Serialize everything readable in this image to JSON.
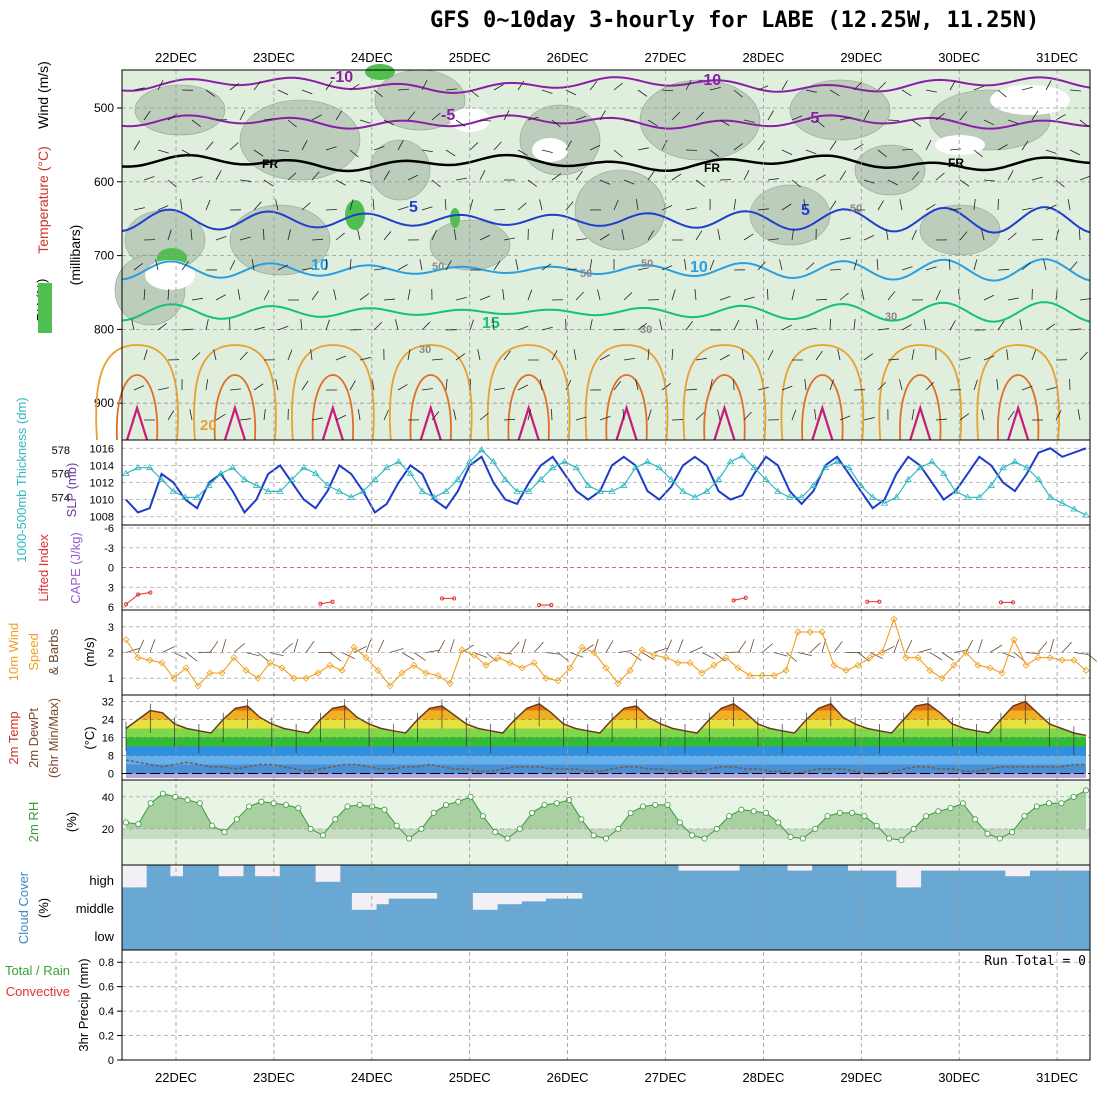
{
  "title": "GFS 0~10day 3-hourly for LABE (12.25W, 11.25N)",
  "dates": [
    "22DEC",
    "23DEC",
    "24DEC",
    "25DEC",
    "26DEC",
    "27DEC",
    "28DEC",
    "29DEC",
    "30DEC",
    "31DEC"
  ],
  "colors": {
    "rh_light": "#dfeedd",
    "rh_mid": "#b9cab9",
    "rh_dark": "#a2b4a2",
    "rh_green": "#4fc04f",
    "temp_m10": "#8a1fa5",
    "temp_m5": "#8a1fa5",
    "temp_fr": "#000000",
    "temp_5": "#1f3fcc",
    "temp_10": "#2a9fe0",
    "temp_15": "#15c07a",
    "temp_20": "#e8a030",
    "temp_25": "#e07020",
    "temp_30": "#cc1a7a",
    "slp": "#1e3cc8",
    "thickness": "#30b8c0",
    "lifted": "#e03030",
    "wind10": "#f0a020",
    "temp2m_hot": "#d84010",
    "dew": "#7a5a3a",
    "rh2m": "#3a9a3a",
    "cloud": "#6aa8d4",
    "cloud_white": "#f2f0f6"
  },
  "panels": {
    "upper": {
      "ylabel": "(millibars)",
      "side_labels": [
        "RH (%)",
        "Temperature (°C)",
        "Wind (m/s)"
      ],
      "ticks": [
        "500",
        "600",
        "700",
        "800",
        "900"
      ],
      "contour_labels": [
        "-10",
        "-5",
        "FR",
        "5",
        "10",
        "15",
        "20",
        "30",
        "50"
      ]
    },
    "slp": {
      "left_label": "1000-500mb Thickness (dm)",
      "right_label": "SLP (mb)",
      "left_ticks": [
        "578",
        "576",
        "574"
      ],
      "right_ticks": [
        "1016",
        "1014",
        "1012",
        "1010",
        "1008"
      ]
    },
    "li": {
      "left_label": "Lifted Index",
      "right_label": "CAPE (J/kg)",
      "ticks": [
        "-6",
        "-3",
        "0",
        "3",
        "6"
      ]
    },
    "wind10": {
      "label_a": "10m Wind",
      "label_b": "Speed",
      "label_c": "& Barbs",
      "ylabel": "(m/s)",
      "ticks": [
        "3",
        "2",
        "1"
      ]
    },
    "temp2m": {
      "label_a": "2m Temp",
      "label_b": "2m DewPt",
      "label_c": "(6hr Min/Max)",
      "ylabel": "(°C)",
      "ticks": [
        "32",
        "24",
        "16",
        "8",
        "0"
      ]
    },
    "rh2m": {
      "label": "2m RH",
      "ylabel": "(%)",
      "ticks": [
        "40",
        "20"
      ]
    },
    "cloud": {
      "label": "Cloud Cover",
      "ylabel": "(%)",
      "levels": [
        "high",
        "middle",
        "low"
      ]
    },
    "precip": {
      "label_a": "Total / Rain",
      "label_b": "Convective",
      "ylabel": "3hr Precip (mm)",
      "ticks": [
        "0.8",
        "0.6",
        "0.4",
        "0.2",
        "0"
      ],
      "run_total": "Run Total = 0"
    }
  },
  "chart_data": [
    {
      "type": "line",
      "title": "1000-500mb Thickness (dm) / SLP (mb)",
      "series": [
        {
          "name": "SLP (mb)",
          "values": [
            1010,
            1008.5,
            1009,
            1013,
            1012,
            1010,
            1009,
            1012,
            1013,
            1011,
            1008.5,
            1010,
            1013,
            1014,
            1012,
            1010,
            1009,
            1011,
            1014,
            1013,
            1011,
            1008.5,
            1009.5,
            1012,
            1014,
            1013,
            1010,
            1009,
            1011,
            1014,
            1015,
            1012,
            1010,
            1009.5,
            1012,
            1014,
            1015,
            1013,
            1011,
            1010,
            1011,
            1014,
            1015,
            1014,
            1011,
            1010,
            1011.5,
            1014,
            1015,
            1014,
            1011,
            1010,
            1010.5,
            1013,
            1015,
            1014,
            1011,
            1009.5,
            1011,
            1014,
            1015,
            1013,
            1011,
            1009,
            1010,
            1013,
            1015,
            1014,
            1012,
            1010,
            1011,
            1013,
            1015,
            1014,
            1012,
            1011,
            1013,
            1015.5,
            1016,
            1015,
            1015.5,
            1016
          ]
        },
        {
          "name": "1000-500mb Thickness (dm)",
          "values": [
            576,
            576.5,
            576.5,
            575.5,
            574.5,
            574,
            574,
            575,
            576,
            576.5,
            575.5,
            575,
            574.5,
            574.5,
            575.5,
            576.5,
            576,
            575,
            574.5,
            574,
            574.5,
            575.5,
            576.5,
            577,
            576,
            574.5,
            574,
            574.5,
            575.5,
            577,
            578,
            577,
            575.5,
            574.5,
            574.5,
            575.5,
            576.5,
            577,
            576.5,
            575,
            574.5,
            574.5,
            575,
            576.5,
            577,
            576.5,
            575.5,
            574.5,
            574,
            574.5,
            575.5,
            577,
            577.5,
            576.5,
            575.5,
            574.5,
            574,
            574,
            575,
            576.5,
            577,
            576.5,
            575,
            574,
            573.5,
            574,
            575.5,
            576.5,
            577,
            576,
            574.5,
            574,
            574,
            575,
            576.5,
            577,
            576.5,
            575.5,
            574,
            573.5,
            573,
            572.5
          ]
        }
      ],
      "ylim_left": [
        572,
        578.5
      ],
      "ylim_right": [
        1007.5,
        1016.5
      ]
    },
    {
      "type": "line",
      "title": "10m Wind Speed",
      "series": [
        {
          "name": "10m Wind Speed (m/s)",
          "values": [
            2.5,
            1.8,
            1.7,
            1.6,
            1.0,
            1.4,
            0.7,
            1.2,
            1.2,
            1.8,
            1.3,
            1.0,
            1.6,
            1.4,
            1.0,
            1.0,
            1.2,
            1.5,
            1.3,
            2.2,
            1.8,
            1.3,
            0.7,
            1.2,
            1.5,
            1.2,
            1.1,
            0.8,
            2.1,
            1.9,
            1.5,
            1.8,
            1.6,
            1.4,
            1.6,
            1.0,
            0.9,
            1.4,
            2.2,
            2.0,
            1.4,
            0.8,
            1.3,
            2.1,
            1.9,
            1.8,
            1.6,
            1.6,
            1.2,
            1.5,
            1.8,
            1.4,
            1.1,
            1.1,
            1.1,
            1.3,
            2.8,
            2.8,
            2.8,
            1.5,
            1.3,
            1.5,
            1.8,
            2.0,
            3.3,
            1.8,
            1.8,
            1.3,
            1.0,
            1.5,
            2.0,
            1.5,
            1.4,
            1.2,
            2.5,
            1.5,
            1.8,
            1.8,
            1.7,
            1.7,
            1.3
          ]
        }
      ],
      "ylim": [
        0.5,
        3.5
      ]
    },
    {
      "type": "area",
      "title": "2m Temp / 2m DewPt",
      "series": [
        {
          "name": "2m Temp (°C)",
          "values": [
            20,
            24,
            28,
            27,
            22,
            20,
            19,
            18,
            24,
            29,
            30,
            25,
            22,
            20,
            19,
            18,
            24,
            29,
            30,
            25,
            22,
            20,
            19,
            18,
            24,
            29,
            30,
            26,
            22,
            20,
            19,
            18,
            24,
            29,
            31,
            27,
            22,
            20,
            19,
            18,
            24,
            29,
            30,
            25,
            22,
            20,
            19,
            18,
            24,
            29,
            31,
            27,
            22,
            20,
            19,
            18,
            24,
            29,
            31,
            25,
            22,
            20,
            19,
            18,
            24,
            30,
            31,
            27,
            22,
            20,
            19,
            18,
            24,
            30,
            32,
            27,
            22,
            20,
            18,
            17
          ]
        },
        {
          "name": "2m DewPt (°C)",
          "values": [
            6,
            5,
            4,
            3,
            4,
            5,
            4,
            3,
            3,
            2,
            3,
            4,
            4,
            3,
            2,
            1,
            2,
            3,
            4,
            4,
            3,
            2,
            2,
            3,
            3,
            4,
            3,
            2,
            2,
            1,
            1,
            2,
            3,
            3,
            3,
            2,
            2,
            2,
            1,
            1,
            2,
            3,
            3,
            2,
            2,
            1,
            1,
            1,
            2,
            3,
            3,
            2,
            2,
            1,
            1,
            0,
            1,
            2,
            2,
            2,
            1,
            0,
            0,
            1,
            2,
            3,
            3,
            2,
            2,
            1,
            1,
            2,
            3,
            3,
            3,
            3,
            3,
            3,
            4,
            4
          ]
        }
      ],
      "ylim": [
        -2,
        34
      ]
    },
    {
      "type": "area",
      "title": "2m RH",
      "series": [
        {
          "name": "2m RH (%)",
          "values": [
            24,
            23,
            36,
            42,
            40,
            38,
            36,
            22,
            18,
            26,
            34,
            37,
            36,
            35,
            33,
            20,
            16,
            26,
            34,
            35,
            34,
            32,
            22,
            14,
            20,
            30,
            35,
            37,
            40,
            28,
            18,
            14,
            20,
            30,
            35,
            36,
            38,
            26,
            16,
            14,
            20,
            30,
            34,
            35,
            35,
            24,
            16,
            14,
            20,
            28,
            32,
            31,
            30,
            24,
            15,
            14,
            20,
            28,
            30,
            30,
            28,
            22,
            14,
            13,
            20,
            28,
            31,
            33,
            36,
            26,
            17,
            14,
            18,
            28,
            34,
            36,
            36,
            40,
            44
          ]
        }
      ],
      "ylim": [
        0,
        48
      ]
    },
    {
      "type": "line",
      "title": "Lifted Index",
      "series": [
        {
          "name": "Lifted Index",
          "values": [
            5.6,
            4.1,
            3.8,
            6,
            6,
            6,
            6,
            6,
            6,
            6,
            6,
            6,
            6,
            6,
            6,
            6,
            5.5,
            5.2,
            6,
            6,
            6,
            6,
            6,
            6,
            6,
            6,
            4.7,
            4.7,
            6,
            6,
            6,
            6,
            6,
            6,
            5.7,
            5.7,
            6,
            6,
            6,
            6,
            6,
            6,
            6,
            6,
            6,
            6,
            6,
            6,
            6,
            6,
            5.0,
            4.6,
            6,
            6,
            6,
            6,
            6,
            6,
            6,
            6,
            6,
            5.2,
            5.2,
            6,
            6,
            6,
            6,
            6,
            6,
            6,
            6,
            6,
            5.3,
            5.3,
            6,
            6,
            6,
            6,
            6,
            6
          ]
        }
      ],
      "ylim": [
        -6,
        6
      ]
    },
    {
      "type": "bar",
      "title": "Cloud Cover (%)",
      "series": [
        {
          "name": "high",
          "values": [
            80,
            80,
            0,
            0,
            40,
            0,
            0,
            0,
            40,
            40,
            0,
            40,
            40,
            0,
            0,
            0,
            60,
            60,
            0,
            0,
            0,
            0,
            0,
            0,
            0,
            0,
            0,
            0,
            0,
            0,
            0,
            0,
            0,
            0,
            0,
            0,
            0,
            0,
            0,
            0,
            0,
            0,
            0,
            0,
            0,
            0,
            20,
            20,
            20,
            20,
            20,
            0,
            0,
            0,
            0,
            20,
            20,
            0,
            0,
            0,
            20,
            20,
            20,
            20,
            80,
            80,
            20,
            20,
            20,
            20,
            20,
            20,
            20,
            40,
            40,
            20,
            20,
            20,
            20,
            20
          ]
        },
        {
          "name": "middle",
          "values": [
            0,
            0,
            0,
            0,
            0,
            0,
            0,
            0,
            0,
            0,
            0,
            0,
            0,
            0,
            0,
            0,
            0,
            0,
            0,
            60,
            60,
            40,
            20,
            20,
            20,
            20,
            0,
            0,
            0,
            60,
            60,
            40,
            40,
            30,
            30,
            20,
            20,
            20,
            0,
            0,
            0,
            0,
            0,
            0,
            0,
            0,
            0,
            0,
            0,
            0,
            0,
            0,
            0,
            0,
            0,
            0,
            0,
            0,
            0,
            0,
            0,
            0,
            0,
            0,
            0,
            0,
            0,
            0,
            0,
            0,
            0,
            0,
            0,
            0,
            0,
            0,
            0,
            0,
            0,
            0
          ]
        },
        {
          "name": "low",
          "values": [
            0,
            0,
            0,
            0,
            0,
            0,
            0,
            0,
            0,
            0,
            0,
            0,
            0,
            0,
            0,
            0,
            0,
            0,
            0,
            0,
            0,
            0,
            0,
            0,
            0,
            0,
            0,
            0,
            0,
            0,
            0,
            0,
            0,
            0,
            0,
            0,
            0,
            0,
            0,
            0,
            0,
            0,
            0,
            0,
            0,
            0,
            0,
            0,
            0,
            0,
            0,
            0,
            0,
            0,
            0,
            0,
            0,
            0,
            0,
            0,
            0,
            0,
            0,
            0,
            0,
            0,
            0,
            0,
            0,
            0,
            0,
            0,
            0,
            0,
            0,
            0,
            0,
            0,
            0,
            0
          ]
        }
      ]
    },
    {
      "type": "bar",
      "title": "3hr Precip (mm)",
      "series": [
        {
          "name": "3hr Precip (mm)",
          "values": [
            0,
            0,
            0,
            0,
            0,
            0,
            0,
            0,
            0,
            0
          ]
        }
      ],
      "ylim": [
        0,
        0.9
      ]
    }
  ]
}
